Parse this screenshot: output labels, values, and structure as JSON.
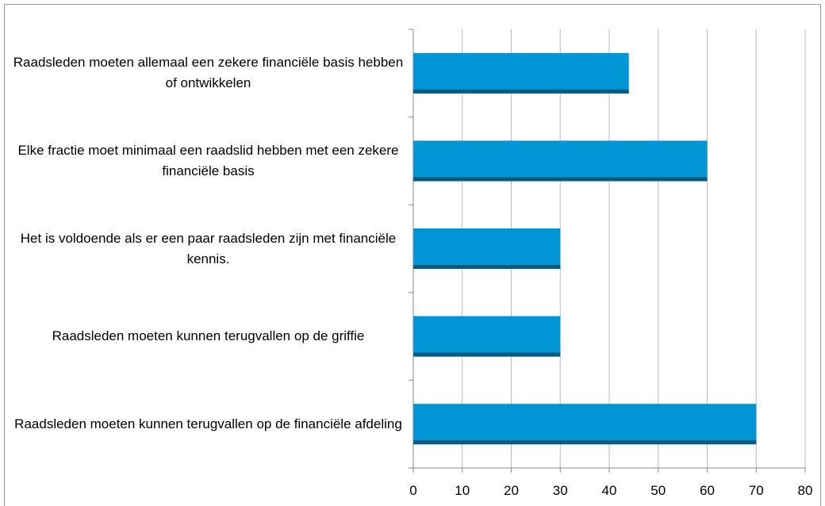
{
  "chart_data": {
    "type": "barh",
    "categories": [
      "Raadsleden moeten allemaal een zekere financiële basis hebben of ontwikkelen",
      "Elke fractie moet minimaal een raadslid hebben met een zekere financiële basis",
      "Het is voldoende als er een paar raadsleden zijn met financiële kennis.",
      "Raadsleden moeten kunnen terugvallen op de griffie",
      "Raadsleden moeten kunnen terugvallen op de financiële afdeling"
    ],
    "values": [
      44,
      60,
      30,
      30,
      70
    ],
    "color": "#0096d6",
    "xlim": [
      0,
      80
    ],
    "xticks": [
      0,
      10,
      20,
      30,
      40,
      50,
      60,
      70,
      80
    ],
    "grid": true
  }
}
